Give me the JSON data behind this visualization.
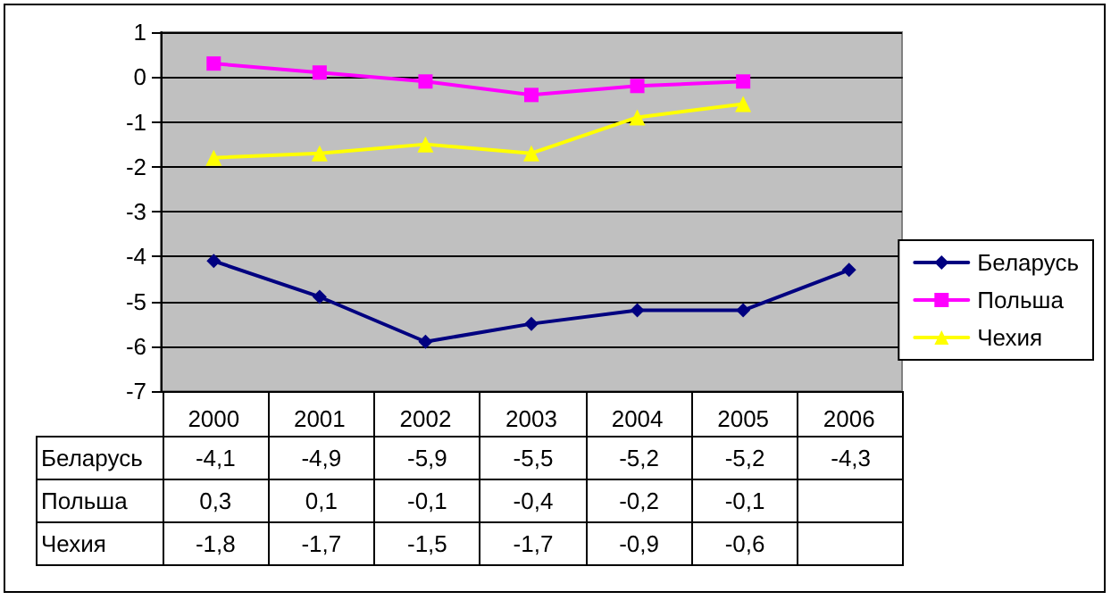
{
  "chart_data": {
    "type": "line",
    "categories": [
      "2000",
      "2001",
      "2002",
      "2003",
      "2004",
      "2005",
      "2006"
    ],
    "series": [
      {
        "name": "Беларусь",
        "color": "#000080",
        "marker": "diamond",
        "values": [
          -4.1,
          -4.9,
          -5.9,
          -5.5,
          -5.2,
          -5.2,
          -4.3
        ],
        "value_labels": [
          "-4,1",
          "-4,9",
          "-5,9",
          "-5,5",
          "-5,2",
          "-5,2",
          "-4,3"
        ]
      },
      {
        "name": "Польша",
        "color": "#ff00ff",
        "marker": "square",
        "values": [
          0.3,
          0.1,
          -0.1,
          -0.4,
          -0.2,
          -0.1,
          null
        ],
        "value_labels": [
          "0,3",
          "0,1",
          "-0,1",
          "-0,4",
          "-0,2",
          "-0,1",
          null
        ]
      },
      {
        "name": "Чехия",
        "color": "#ffff00",
        "marker": "triangle",
        "values": [
          -1.8,
          -1.7,
          -1.5,
          -1.7,
          -0.9,
          -0.6,
          null
        ],
        "value_labels": [
          "-1,8",
          "-1,7",
          "-1,5",
          "-1,7",
          "-0,9",
          "-0,6",
          null
        ]
      }
    ],
    "ylim": [
      -7,
      1
    ],
    "yticks": [
      -7,
      -6,
      -5,
      -4,
      -3,
      -2,
      -1,
      0,
      1
    ],
    "grid": "y",
    "legend": "right",
    "line_style": "solid"
  }
}
